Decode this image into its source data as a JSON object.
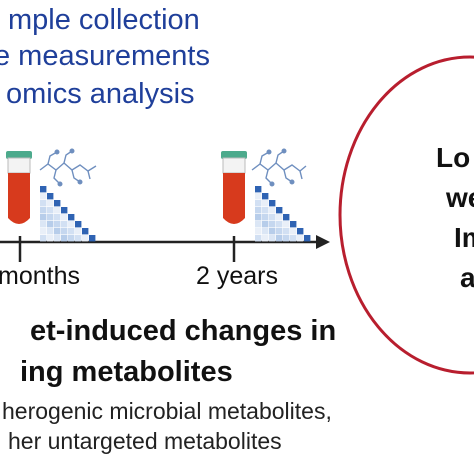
{
  "top_lines": [
    "mple collection",
    "e measurements",
    "omics analysis"
  ],
  "timeline": {
    "labels": [
      "months",
      "2 years"
    ]
  },
  "heading": {
    "line1": "et-induced changes in",
    "line2": "ing metabolites"
  },
  "details": [
    "herogenic microbial metabolites,",
    "her untargeted metabolites"
  ],
  "callout": {
    "lines": [
      "Lo",
      "we",
      "Im",
      "a"
    ]
  },
  "colors": {
    "primary_blue": "#1f3f9a",
    "tube_red": "#d73a1d",
    "tube_cap": "#4caa8c",
    "callout_border": "#b81e2e",
    "heatmap_blue": "#2f63b3"
  }
}
